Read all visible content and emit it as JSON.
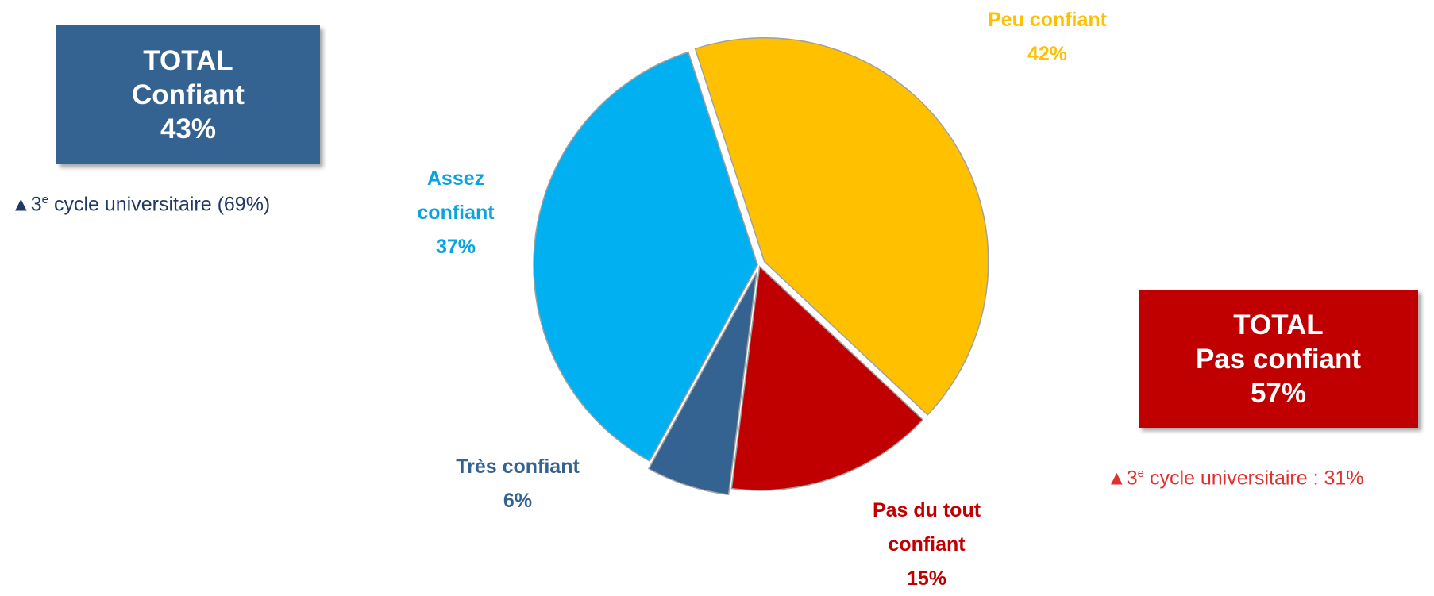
{
  "chart_data": {
    "type": "pie",
    "categories": [
      "Peu confiant",
      "Pas du tout confiant",
      "Très confiant",
      "Assez confiant"
    ],
    "values": [
      42,
      15,
      6,
      37
    ],
    "value_labels": [
      "42%",
      "15%",
      "6%",
      "37%"
    ],
    "colors": [
      "#FFC000",
      "#C00000",
      "#356391",
      "#00B0F0"
    ],
    "label_colors": [
      "#FFC000",
      "#C00000",
      "#356391",
      "#0AA3DC"
    ]
  },
  "boxes": [
    {
      "lines": [
        "TOTAL",
        "Confiant",
        "43%"
      ],
      "color": "#356391",
      "note": {
        "num": "3",
        "sup": "e",
        "text": " cycle universitaire (69%)",
        "color": "#1F3864"
      }
    },
    {
      "lines": [
        "TOTAL",
        "Pas confiant",
        "57%"
      ],
      "color": "#C00000",
      "note": {
        "num": "3",
        "sup": "e",
        "text": " cycle universitaire : 31%",
        "color": "#E03030"
      }
    }
  ]
}
